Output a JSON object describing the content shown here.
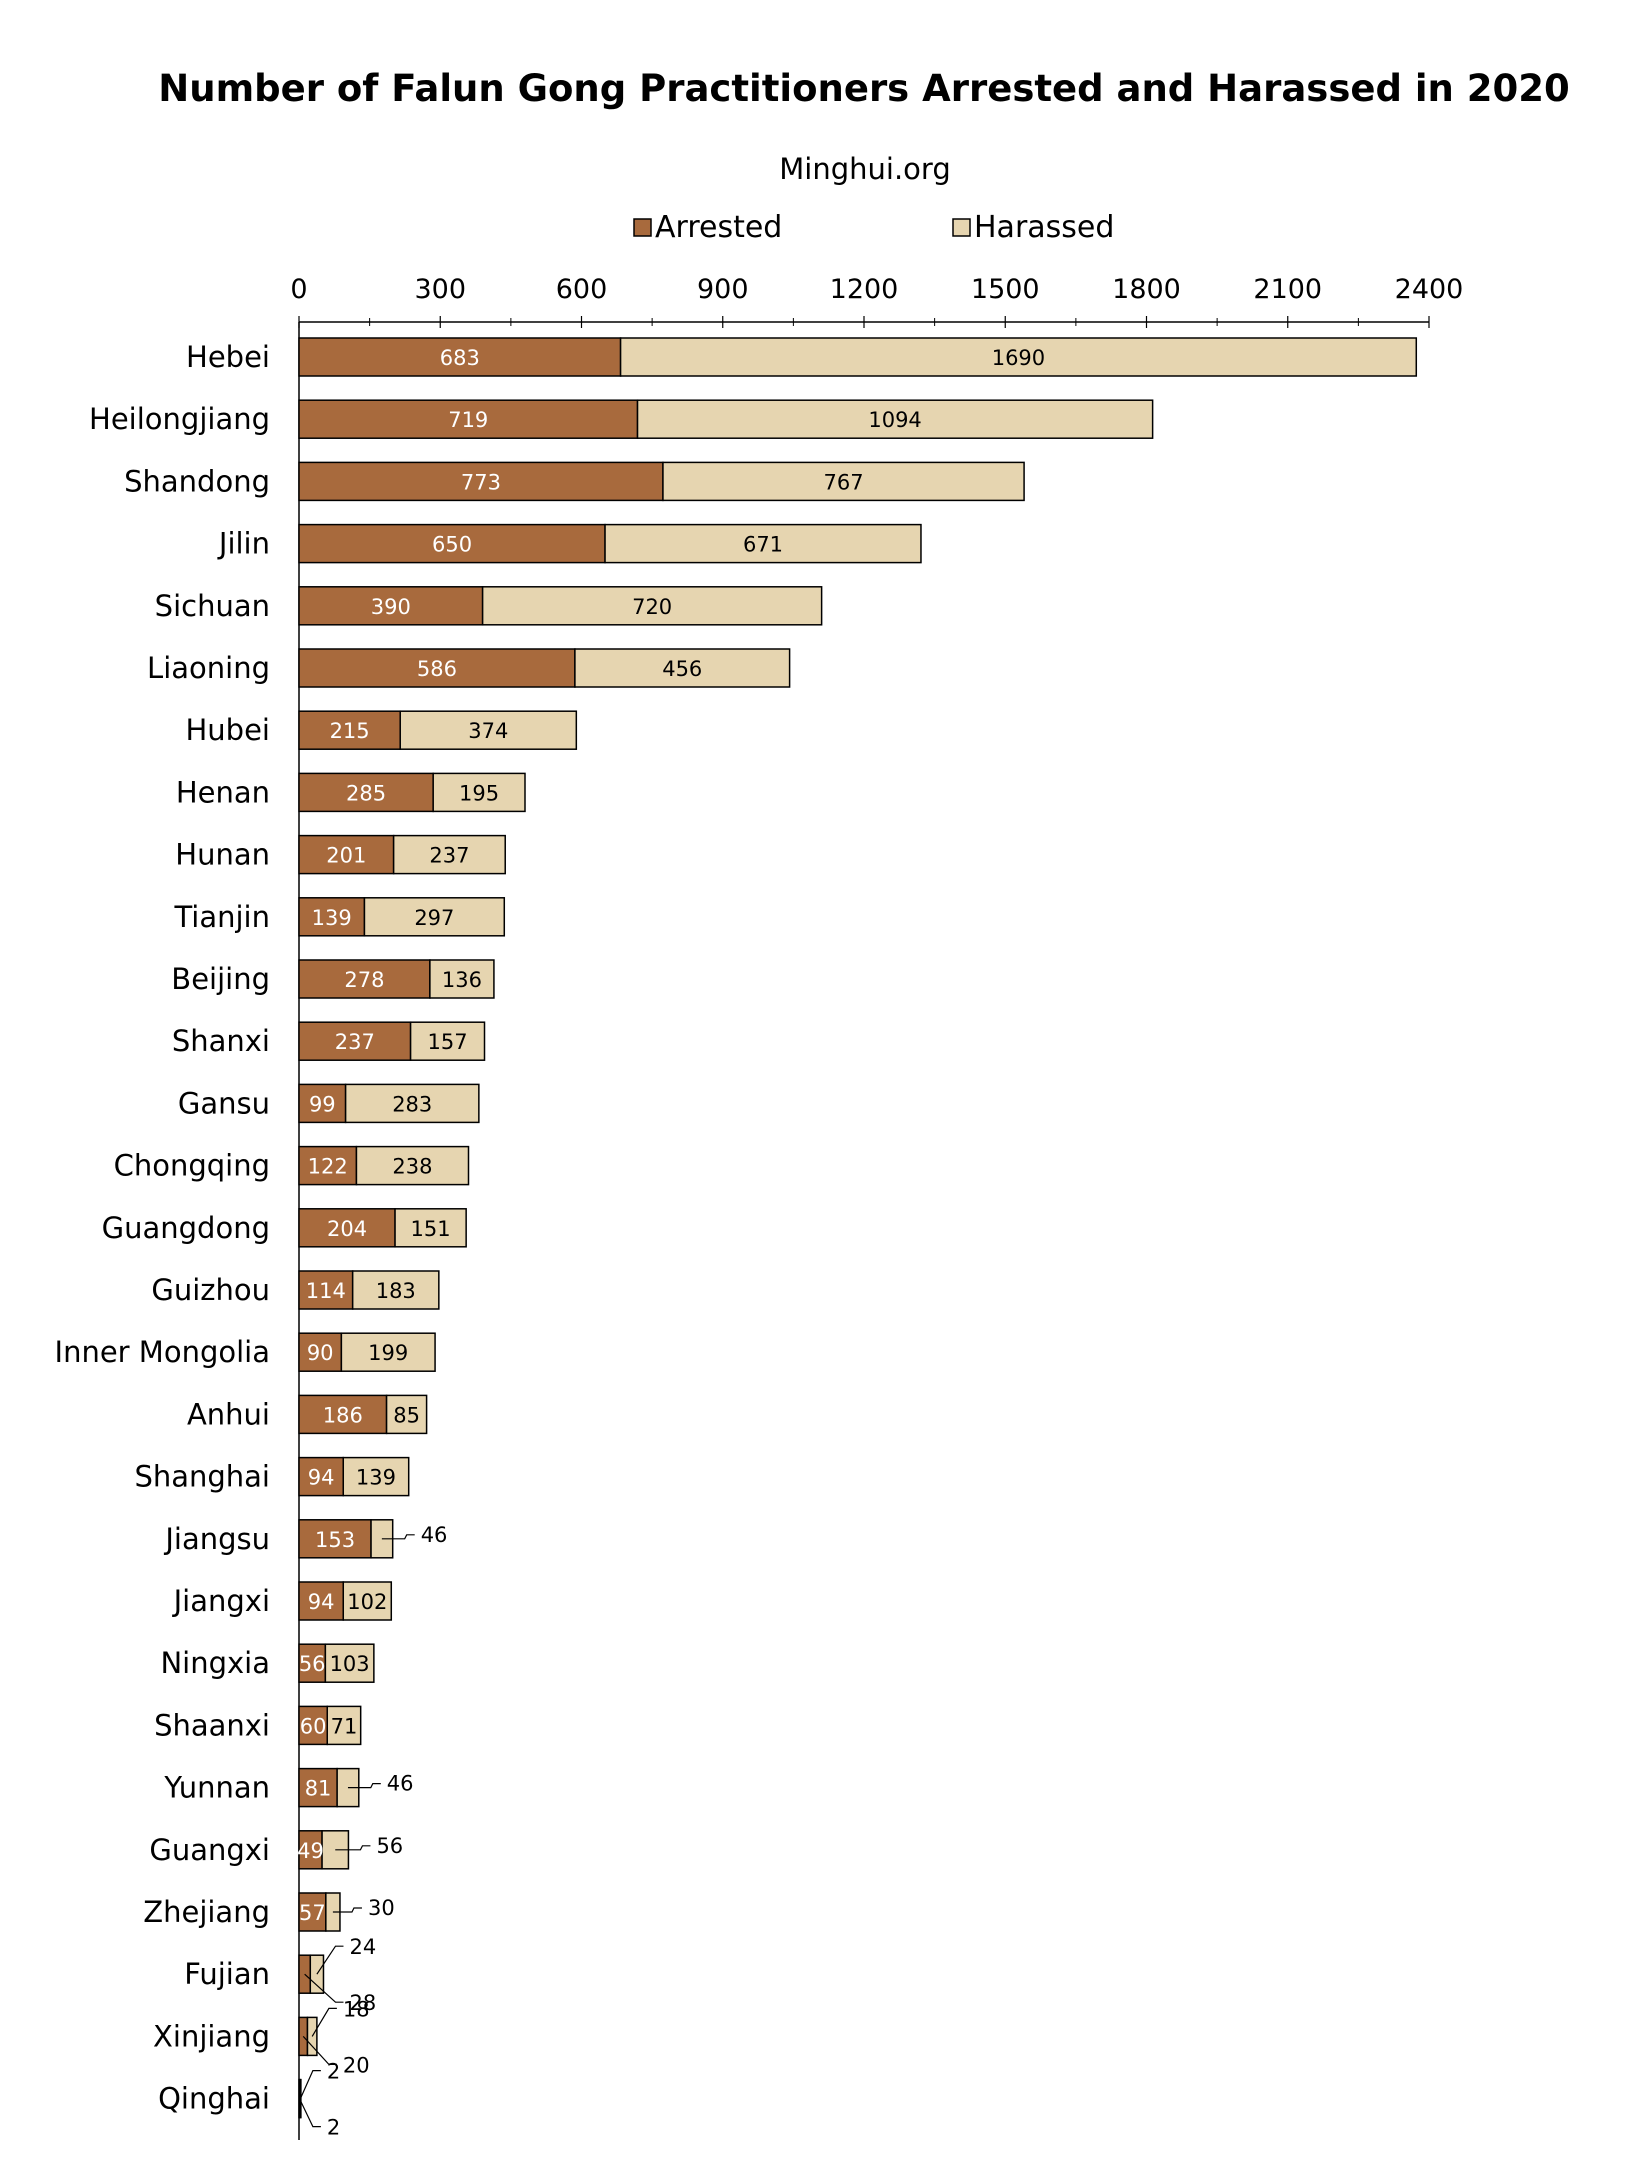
{
  "chart_data": {
    "type": "bar",
    "orientation": "horizontal",
    "stacked": true,
    "title": "Number of Falun Gong Practitioners Arrested and Harassed in 2020",
    "subtitle": "Minghui.org",
    "xlim": [
      0,
      2400
    ],
    "xticks": [
      "0",
      "300",
      "600",
      "900",
      "1200",
      "1500",
      "1800",
      "2100",
      "2400"
    ],
    "legend_position": "top",
    "grid": false,
    "categories": [
      "Hebei",
      "Heilongjiang",
      "Shandong",
      "Jilin",
      "Sichuan",
      "Liaoning",
      "Hubei",
      "Henan",
      "Hunan",
      "Tianjin",
      "Beijing",
      "Shanxi",
      "Gansu",
      "Chongqing",
      "Guangdong",
      "Guizhou",
      "Inner Mongolia",
      "Anhui",
      "Shanghai",
      "Jiangsu",
      "Jiangxi",
      "Ningxia",
      "Shaanxi",
      "Yunnan",
      "Guangxi",
      "Zhejiang",
      "Fujian",
      "Xinjiang",
      "Qinghai"
    ],
    "series": [
      {
        "name": "Arrested",
        "color": "#a86a3d",
        "label_color": "#ffffff",
        "values": [
          683,
          719,
          773,
          650,
          390,
          586,
          215,
          285,
          201,
          139,
          278,
          237,
          99,
          122,
          204,
          114,
          90,
          186,
          94,
          153,
          94,
          56,
          60,
          81,
          49,
          57,
          24,
          18,
          2
        ]
      },
      {
        "name": "Harassed",
        "color": "#e6d5b0",
        "label_color": "#000000",
        "values": [
          1690,
          1094,
          767,
          671,
          720,
          456,
          374,
          195,
          237,
          297,
          136,
          157,
          283,
          238,
          151,
          183,
          199,
          85,
          139,
          46,
          102,
          103,
          71,
          46,
          56,
          30,
          28,
          20,
          2
        ]
      }
    ]
  }
}
